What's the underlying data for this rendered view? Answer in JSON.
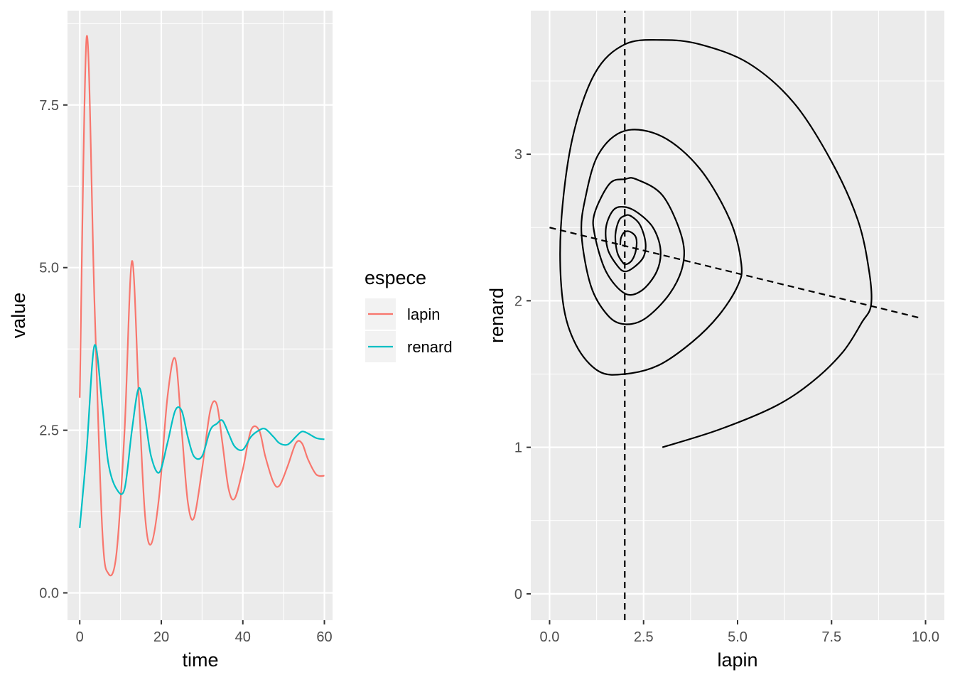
{
  "chart_data": [
    {
      "type": "line",
      "xlabel": "time",
      "ylabel": "value",
      "xlim": [
        -3,
        62
      ],
      "ylim": [
        -0.42,
        8.95
      ],
      "x_ticks": [
        0,
        20,
        40,
        60
      ],
      "x_tick_labels": [
        "0",
        "20",
        "40",
        "60"
      ],
      "y_ticks": [
        0,
        2.5,
        5,
        7.5
      ],
      "y_tick_labels": [
        "0.0",
        "2.5",
        "5.0",
        "7.5"
      ],
      "grid": true,
      "legend": {
        "title": "espece",
        "position": "right",
        "entries": [
          {
            "label": "lapin",
            "color": "#F8766D"
          },
          {
            "label": "renard",
            "color": "#00BFC4"
          }
        ]
      },
      "x": [
        0,
        1.7,
        3.6,
        5.5,
        7,
        9,
        11,
        12.8,
        14.5,
        16,
        17.5,
        19.5,
        21.5,
        23.4,
        25,
        26.5,
        28,
        30,
        32,
        33.6,
        35,
        36.5,
        38,
        40,
        42,
        44,
        45.5,
        47.5,
        49,
        51,
        53,
        54.5,
        56,
        58,
        60
      ],
      "series": [
        {
          "name": "lapin",
          "color": "#F8766D",
          "values": [
            3.0,
            8.55,
            4.5,
            1.0,
            0.3,
            0.6,
            2.5,
            5.1,
            3.0,
            1.2,
            0.75,
            1.5,
            3.0,
            3.6,
            2.5,
            1.4,
            1.15,
            1.9,
            2.8,
            2.9,
            2.3,
            1.6,
            1.45,
            1.9,
            2.5,
            2.5,
            2.1,
            1.7,
            1.65,
            1.95,
            2.3,
            2.3,
            2.05,
            1.82,
            1.8
          ]
        },
        {
          "name": "renard",
          "color": "#00BFC4",
          "values": [
            1.0,
            2.2,
            3.8,
            2.9,
            2.0,
            1.6,
            1.6,
            2.5,
            3.15,
            2.7,
            2.1,
            1.85,
            2.3,
            2.8,
            2.8,
            2.4,
            2.1,
            2.1,
            2.5,
            2.6,
            2.65,
            2.45,
            2.25,
            2.2,
            2.4,
            2.5,
            2.52,
            2.4,
            2.3,
            2.28,
            2.4,
            2.48,
            2.45,
            2.38,
            2.36
          ]
        }
      ]
    },
    {
      "type": "line",
      "xlabel": "lapin",
      "ylabel": "renard",
      "xlim": [
        -0.5,
        10.5
      ],
      "ylim": [
        -0.18,
        3.98
      ],
      "x_ticks": [
        0,
        2.5,
        5,
        7.5,
        10
      ],
      "x_tick_labels": [
        "0.0",
        "2.5",
        "5.0",
        "7.5",
        "10.0"
      ],
      "y_ticks": [
        0,
        1,
        2,
        3
      ],
      "y_tick_labels": [
        "0",
        "1",
        "2",
        "3"
      ],
      "grid": true,
      "series": [
        {
          "style": "solid",
          "color": "#000000",
          "x": [
            3.0,
            4.5,
            6.0,
            7.0,
            7.8,
            8.3,
            8.55,
            8.5,
            8.2,
            7.5,
            6.5,
            5.3,
            4.0,
            3.0,
            2.0,
            1.2,
            0.6,
            0.3,
            0.35,
            0.7,
            1.3,
            2.0,
            2.9,
            3.8,
            4.5,
            5.0,
            5.1,
            4.8,
            4.0,
            3.0,
            2.0,
            1.3,
            0.95,
            0.85,
            1.1,
            1.55,
            2.0,
            2.55,
            3.2,
            3.55,
            3.5,
            3.0,
            2.3,
            2.0,
            1.6,
            1.2,
            1.2,
            1.5,
            2.0,
            2.45,
            2.85,
            2.95,
            2.75,
            2.35,
            2.0,
            1.7,
            1.5,
            1.55,
            1.8,
            2.0,
            2.25,
            2.5,
            2.55,
            2.4,
            2.15,
            2.0,
            1.85,
            1.75,
            1.8,
            1.95,
            2.05,
            2.2,
            2.3,
            2.3,
            2.15,
            2.0,
            1.9,
            1.88
          ],
          "y": [
            1.0,
            1.12,
            1.28,
            1.45,
            1.65,
            1.85,
            1.97,
            2.2,
            2.55,
            2.95,
            3.35,
            3.62,
            3.75,
            3.78,
            3.75,
            3.55,
            3.1,
            2.5,
            2.0,
            1.7,
            1.52,
            1.5,
            1.56,
            1.72,
            1.9,
            2.1,
            2.25,
            2.55,
            2.9,
            3.12,
            3.16,
            3.0,
            2.7,
            2.45,
            2.1,
            1.9,
            1.84,
            1.88,
            2.05,
            2.25,
            2.45,
            2.72,
            2.83,
            2.83,
            2.8,
            2.6,
            2.45,
            2.2,
            2.05,
            2.07,
            2.2,
            2.35,
            2.5,
            2.6,
            2.64,
            2.62,
            2.5,
            2.35,
            2.24,
            2.2,
            2.23,
            2.3,
            2.4,
            2.52,
            2.58,
            2.58,
            2.55,
            2.45,
            2.33,
            2.26,
            2.25,
            2.28,
            2.35,
            2.43,
            2.47,
            2.47,
            2.43,
            2.38
          ]
        },
        {
          "style": "dashed",
          "color": "#000000",
          "x": [
            2,
            2
          ],
          "y": [
            -0.18,
            3.98
          ]
        },
        {
          "style": "dashed",
          "color": "#000000",
          "x": [
            0,
            9.9
          ],
          "y": [
            2.5,
            1.88
          ]
        }
      ]
    }
  ]
}
